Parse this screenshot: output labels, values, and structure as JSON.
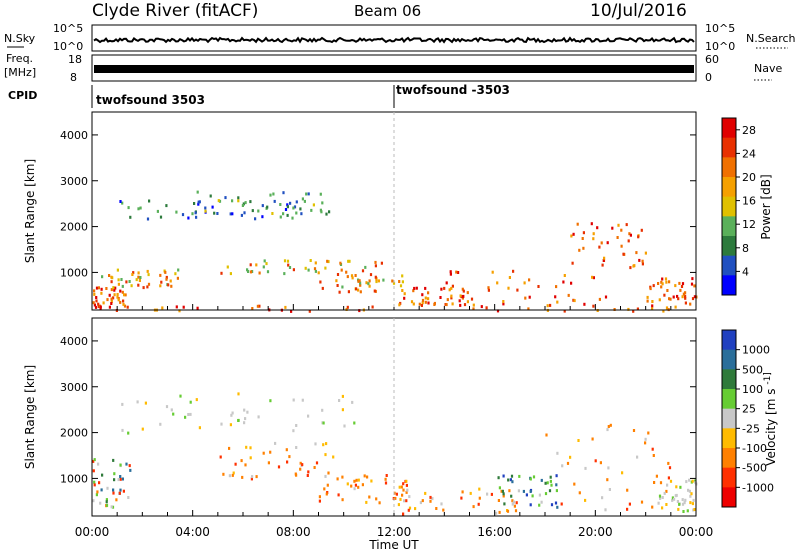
{
  "header": {
    "station": "Clyde River (fitACF)",
    "beam": "Beam 06",
    "date": "10/Jul/2016"
  },
  "top_panels": {
    "nsky_label": "N.Sky",
    "nsky_ticks": [
      "10^5",
      "10^0"
    ],
    "nsearch_label": "N.Search",
    "nsearch_ticks": [
      "10^5",
      "10^0"
    ],
    "freq_label": "Freq.",
    "freq_unit": "[MHz]",
    "freq_ticks": [
      "18",
      "8"
    ],
    "nave_label": "Nave",
    "nave_ticks": [
      "60",
      "0"
    ],
    "cpid_label": "CPID",
    "cpid_entries": [
      {
        "name": "twofsound 3503",
        "start_hour": 0
      },
      {
        "name": "twofsound -3503",
        "start_hour": 12
      }
    ]
  },
  "chart_data": [
    {
      "type": "heatmap",
      "panel": "power",
      "xlabel": "",
      "ylabel": "Slant Range [km]",
      "xlim": [
        0,
        24
      ],
      "ylim": [
        180,
        4500
      ],
      "yticks": [
        1000,
        2000,
        3000,
        4000
      ],
      "colorbar_label": "Power [dB]",
      "colorbar_ticks": [
        4,
        8,
        12,
        16,
        20,
        24,
        28
      ],
      "colorbar_range": [
        0,
        30
      ],
      "colorbar_colors": [
        "#0000ff",
        "#2050c0",
        "#2c7a3c",
        "#5ab05a",
        "#e0c000",
        "#f5a000",
        "#f07000",
        "#e83000",
        "#e00000"
      ],
      "scatter_regions": [
        {
          "t": [
            0.0,
            1.5
          ],
          "r": [
            250,
            700
          ],
          "level": "high"
        },
        {
          "t": [
            0.3,
            3.5
          ],
          "r": [
            700,
            1100
          ],
          "level": "mid"
        },
        {
          "t": [
            1.0,
            8.5
          ],
          "r": [
            2100,
            2600
          ],
          "level": "low"
        },
        {
          "t": [
            4.0,
            10.0
          ],
          "r": [
            2300,
            2800
          ],
          "level": "low-mid"
        },
        {
          "t": [
            5.0,
            11.5
          ],
          "r": [
            1000,
            1300
          ],
          "level": "mid"
        },
        {
          "t": [
            9.0,
            12.5
          ],
          "r": [
            600,
            1000
          ],
          "level": "mid"
        },
        {
          "t": [
            12.0,
            15.0
          ],
          "r": [
            300,
            700
          ],
          "level": "high"
        },
        {
          "t": [
            14.0,
            20.5
          ],
          "r": [
            300,
            1100
          ],
          "level": "high"
        },
        {
          "t": [
            19.0,
            22.0
          ],
          "r": [
            1100,
            2100
          ],
          "level": "high"
        },
        {
          "t": [
            22.0,
            24.0
          ],
          "r": [
            300,
            900
          ],
          "level": "high"
        },
        {
          "t": [
            0.0,
            24.0
          ],
          "r": [
            180,
            300
          ],
          "level": "high"
        }
      ]
    },
    {
      "type": "heatmap",
      "panel": "velocity",
      "xlabel": "Time UT",
      "ylabel": "Slant Range [km]",
      "xlim": [
        0,
        24
      ],
      "ylim": [
        180,
        4500
      ],
      "xticks": [
        "00:00",
        "04:00",
        "08:00",
        "12:00",
        "16:00",
        "20:00",
        "00:00"
      ],
      "yticks": [
        1000,
        2000,
        3000,
        4000
      ],
      "colorbar_label": "Velocity [m s^-1]",
      "colorbar_ticks": [
        "1000",
        "500",
        "100",
        "25",
        "-25",
        "-100",
        "-500",
        "-1000"
      ],
      "colorbar_colors": [
        "#2040c0",
        "#2a6e9a",
        "#2f7a3a",
        "#66cc33",
        "#c8c8c8",
        "#ffbb00",
        "#ff8000",
        "#ff3000",
        "#ee0000"
      ],
      "scatter_regions": [
        {
          "t": [
            0.0,
            1.5
          ],
          "r": [
            400,
            1500
          ],
          "sign": "mixed"
        },
        {
          "t": [
            1.0,
            10.5
          ],
          "r": [
            2000,
            2900
          ],
          "sign": "near-zero"
        },
        {
          "t": [
            5.0,
            10.0
          ],
          "r": [
            1000,
            1800
          ],
          "sign": "negative"
        },
        {
          "t": [
            9.0,
            12.5
          ],
          "r": [
            500,
            1100
          ],
          "sign": "negative"
        },
        {
          "t": [
            12.0,
            17.0
          ],
          "r": [
            250,
            800
          ],
          "sign": "negative"
        },
        {
          "t": [
            16.0,
            18.5
          ],
          "r": [
            400,
            1100
          ],
          "sign": "positive"
        },
        {
          "t": [
            18.0,
            23.0
          ],
          "r": [
            300,
            2200
          ],
          "sign": "negative"
        },
        {
          "t": [
            22.5,
            24.0
          ],
          "r": [
            300,
            1000
          ],
          "sign": "near-zero"
        }
      ]
    }
  ]
}
